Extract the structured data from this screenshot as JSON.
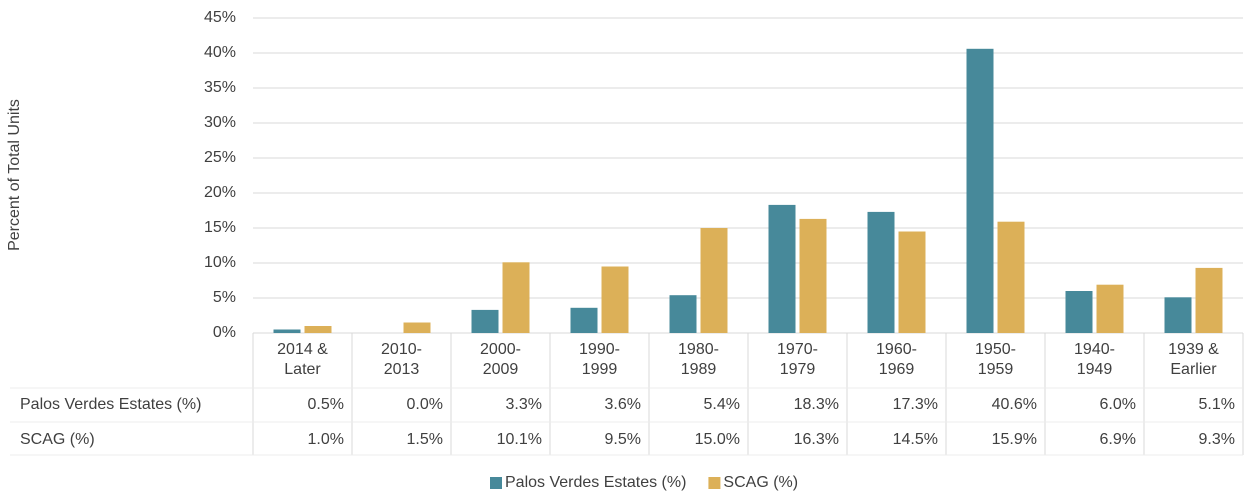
{
  "chart_data": {
    "type": "bar",
    "y_axis_label": "Percent of Total Units",
    "categories": [
      "2014 & Later",
      "2010-2013",
      "2000-2009",
      "1990-1999",
      "1980-1989",
      "1970-1979",
      "1960-1969",
      "1950-1959",
      "1940-1949",
      "1939 & Earlier"
    ],
    "series": [
      {
        "name": "Palos Verdes Estates (%)",
        "color": "#47899a",
        "values": [
          0.5,
          0.0,
          3.3,
          3.6,
          5.4,
          18.3,
          17.3,
          40.6,
          6.0,
          5.1
        ],
        "value_labels": [
          "0.5%",
          "0.0%",
          "3.3%",
          "3.6%",
          "5.4%",
          "18.3%",
          "17.3%",
          "40.6%",
          "6.0%",
          "5.1%"
        ]
      },
      {
        "name": "SCAG (%)",
        "color": "#dcb058",
        "values": [
          1.0,
          1.5,
          10.1,
          9.5,
          15.0,
          16.3,
          14.5,
          15.9,
          6.9,
          9.3
        ],
        "value_labels": [
          "1.0%",
          "1.5%",
          "10.1%",
          "9.5%",
          "15.0%",
          "16.3%",
          "14.5%",
          "15.9%",
          "6.9%",
          "9.3%"
        ]
      }
    ],
    "ylim": [
      0,
      45
    ],
    "yticks": [
      {
        "value": 0,
        "label": "0%"
      },
      {
        "value": 5,
        "label": "5%"
      },
      {
        "value": 10,
        "label": "10%"
      },
      {
        "value": 15,
        "label": "15%"
      },
      {
        "value": 20,
        "label": "20%"
      },
      {
        "value": 25,
        "label": "25%"
      },
      {
        "value": 30,
        "label": "30%"
      },
      {
        "value": 35,
        "label": "35%"
      },
      {
        "value": 40,
        "label": "40%"
      },
      {
        "value": 45,
        "label": "45%"
      }
    ],
    "grid": true,
    "legend": "bottom"
  }
}
